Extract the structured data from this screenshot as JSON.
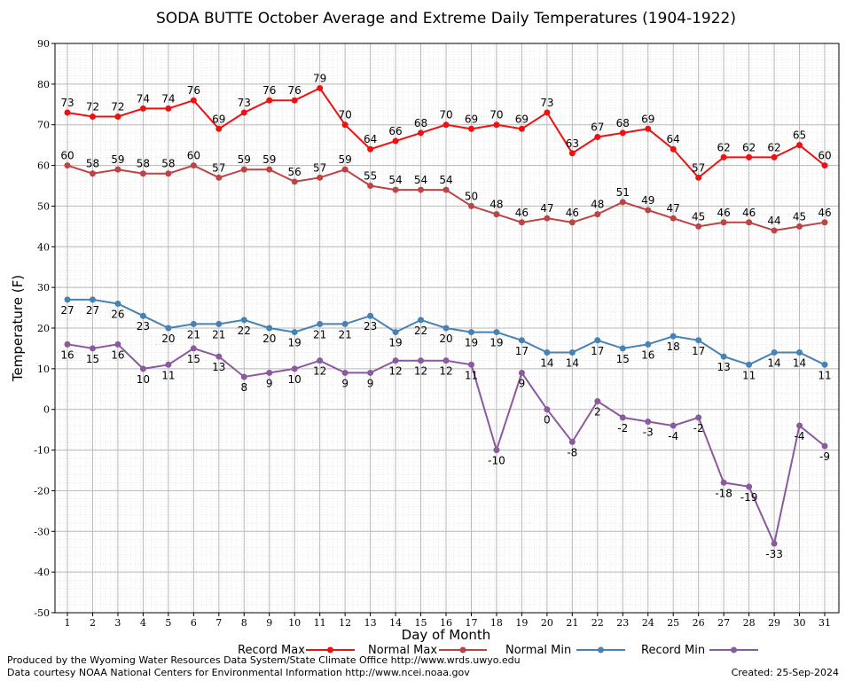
{
  "chart_data": {
    "type": "line",
    "title": "SODA BUTTE October Average and Extreme Daily Temperatures (1904-1922)",
    "xlabel": "Day of Month",
    "ylabel": "Temperature (F)",
    "ylim": [
      -50,
      90
    ],
    "yticks": [
      "90",
      "80",
      "70",
      "60",
      "50",
      "40",
      "30",
      "20",
      "10",
      "0",
      "-10",
      "-20",
      "-30",
      "-40",
      "-50"
    ],
    "x": [
      "1",
      "2",
      "3",
      "4",
      "5",
      "6",
      "7",
      "8",
      "9",
      "10",
      "11",
      "12",
      "13",
      "14",
      "15",
      "16",
      "17",
      "18",
      "19",
      "20",
      "21",
      "22",
      "23",
      "24",
      "25",
      "26",
      "27",
      "28",
      "29",
      "30",
      "31"
    ],
    "grid": true,
    "legend_position": "bottom",
    "series": [
      {
        "name": "Record Max",
        "color": "#ee1111",
        "values": [
          73,
          72,
          72,
          74,
          74,
          76,
          69,
          73,
          76,
          76,
          79,
          70,
          64,
          66,
          68,
          70,
          69,
          70,
          69,
          73,
          63,
          67,
          68,
          69,
          64,
          57,
          62,
          62,
          62,
          65,
          60
        ]
      },
      {
        "name": "Normal Max",
        "color": "#bb4444",
        "values": [
          60,
          58,
          59,
          58,
          58,
          60,
          57,
          59,
          59,
          56,
          57,
          59,
          55,
          54,
          54,
          54,
          50,
          48,
          46,
          47,
          46,
          48,
          51,
          49,
          47,
          45,
          46,
          46,
          44,
          45,
          46
        ]
      },
      {
        "name": "Normal Min",
        "color": "#4682b4",
        "values": [
          27,
          27,
          26,
          23,
          20,
          21,
          21,
          22,
          20,
          19,
          21,
          21,
          23,
          19,
          22,
          20,
          19,
          19,
          17,
          14,
          14,
          17,
          15,
          16,
          18,
          17,
          13,
          11,
          14,
          14,
          11
        ]
      },
      {
        "name": "Record Min",
        "color": "#8b5a9e",
        "values": [
          16,
          15,
          16,
          10,
          11,
          15,
          13,
          8,
          9,
          10,
          12,
          9,
          9,
          12,
          12,
          12,
          11,
          -10,
          9,
          0,
          -8,
          2,
          -2,
          -3,
          -4,
          -2,
          -18,
          -19,
          -33,
          -4,
          -9
        ]
      }
    ]
  },
  "footer": {
    "line1": "Produced by the Wyoming Water Resources Data System/State Climate Office http://www.wrds.uwyo.edu",
    "line2": "Data courtesy NOAA National Centers for Environmental Information http://www.ncei.noaa.gov",
    "created": "Created:  25-Sep-2024"
  }
}
